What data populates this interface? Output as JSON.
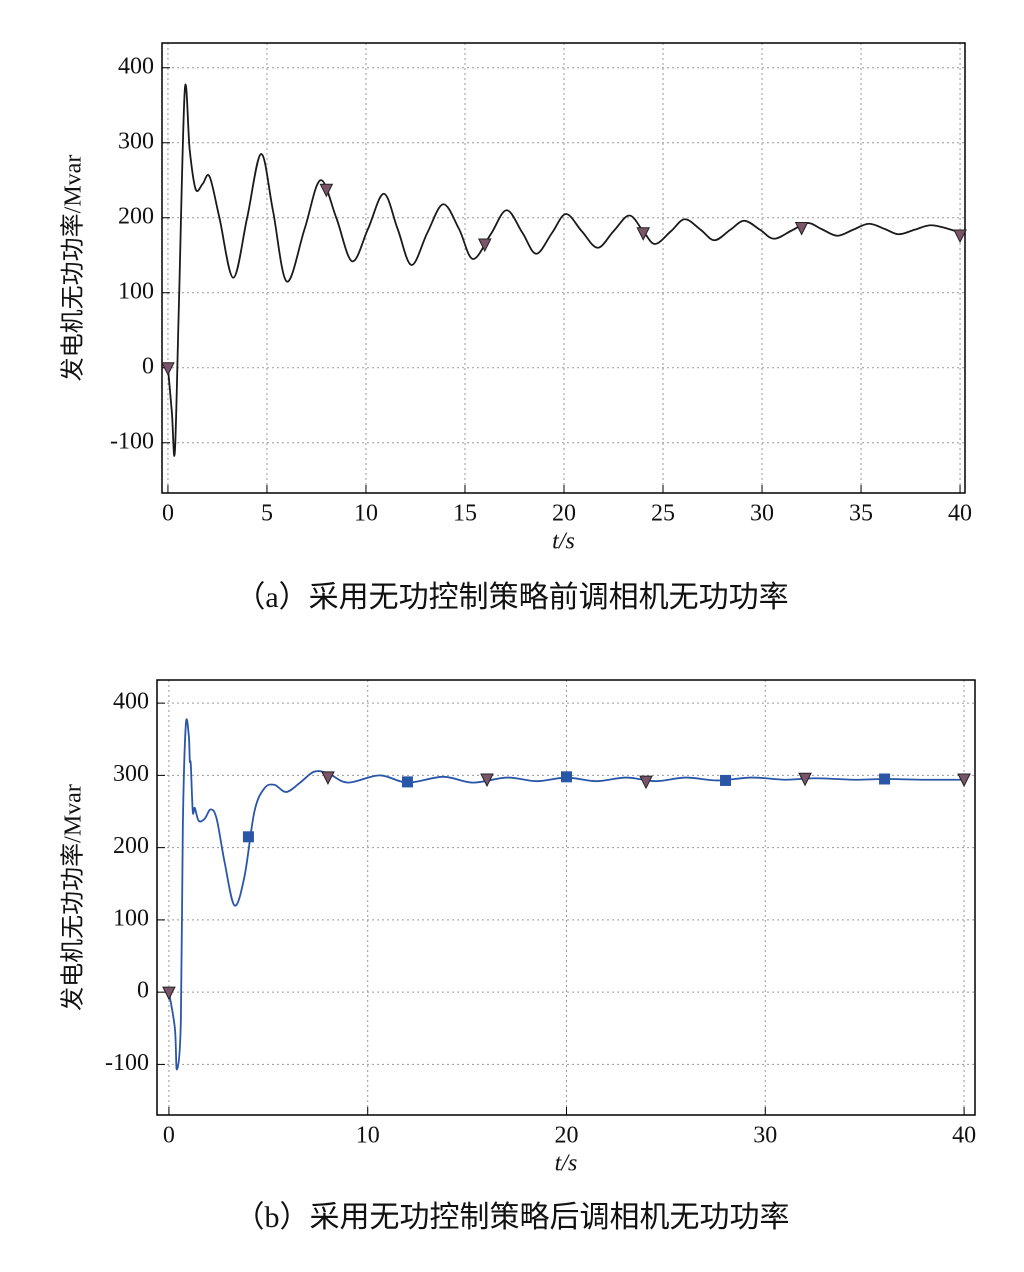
{
  "chart_data": [
    {
      "type": "line",
      "caption": "（a）采用无功控制策略前调相机无功功率",
      "x_label": "t/s",
      "y_label": "发电机无功功率/Mvar",
      "xlim": [
        -0.3,
        40.25
      ],
      "xticks": [
        0,
        5,
        10,
        15,
        20,
        25,
        30,
        35,
        40
      ],
      "ylim": [
        -167,
        433
      ],
      "yticks": [
        -100,
        0,
        100,
        200,
        300,
        400
      ],
      "grid": true,
      "series": [
        {
          "color": "#1a1a1a",
          "x": [
            0,
            0.2,
            0.35,
            0.55,
            0.85,
            1.1,
            1.4,
            1.75,
            2.1,
            2.6,
            3.3,
            4.0,
            4.7,
            5.3,
            6.0,
            6.9,
            7.7,
            8.5,
            9.3,
            10.1,
            10.9,
            11.6,
            12.3,
            13.1,
            13.9,
            14.7,
            15.4,
            16.3,
            17.1,
            17.9,
            18.6,
            19.4,
            20.1,
            20.9,
            21.7,
            22.5,
            23.3,
            24.0,
            24.6,
            25.4,
            26.1,
            26.9,
            27.6,
            28.4,
            29.1,
            29.9,
            30.6,
            31.5,
            32.3,
            33.0,
            33.8,
            34.6,
            35.4,
            36.2,
            36.9,
            37.7,
            38.5,
            39.3,
            40
          ],
          "values": [
            0,
            -60,
            -112,
            80,
            370,
            290,
            238,
            245,
            255,
            200,
            120,
            200,
            285,
            210,
            115,
            185,
            250,
            200,
            142,
            185,
            232,
            185,
            137,
            180,
            218,
            185,
            145,
            178,
            210,
            180,
            152,
            180,
            205,
            182,
            160,
            182,
            203,
            182,
            165,
            182,
            198,
            184,
            170,
            184,
            196,
            184,
            172,
            183,
            193,
            185,
            176,
            184,
            192,
            185,
            178,
            184,
            190,
            186,
            180
          ]
        }
      ],
      "markers": {
        "shape": "triangle",
        "color": "#7a5468",
        "x": [
          0,
          8,
          16,
          24,
          32,
          40
        ],
        "values": [
          0,
          238,
          165,
          180,
          187,
          177
        ]
      }
    },
    {
      "type": "line",
      "caption": "（b）采用无功控制策略后调相机无功功率",
      "x_label": "t/s",
      "y_label": "发电机无功功率/Mvar",
      "xlim": [
        -0.6,
        40.55
      ],
      "xticks": [
        0,
        10,
        20,
        30,
        40
      ],
      "ylim": [
        -170,
        432
      ],
      "yticks": [
        -100,
        0,
        100,
        200,
        300,
        400
      ],
      "grid": true,
      "series": [
        {
          "color": "#2a56a8",
          "x": [
            0,
            0.3,
            0.4,
            0.6,
            0.7,
            0.85,
            1.0,
            1.05,
            1.1,
            1.2,
            1.3,
            1.5,
            1.8,
            2.1,
            2.4,
            2.8,
            3.3,
            3.8,
            4.3,
            4.8,
            5.3,
            5.9,
            6.6,
            7.3,
            8,
            9,
            10.6,
            12,
            13.8,
            15.3,
            17,
            18.5,
            20,
            21.5,
            23,
            24.5,
            26,
            27.6,
            29.3,
            31,
            32.5,
            34.5,
            36,
            38,
            40
          ],
          "values": [
            0,
            -50,
            -107,
            -40,
            230,
            370,
            355,
            320,
            315,
            250,
            255,
            237,
            240,
            253,
            240,
            180,
            120,
            160,
            250,
            282,
            287,
            277,
            290,
            305,
            303,
            290,
            300,
            290,
            298,
            290,
            297,
            292,
            297,
            292,
            297,
            292,
            297,
            293,
            297,
            294,
            296,
            294,
            295,
            294,
            294
          ]
        }
      ],
      "markers": {
        "shape": "triangle",
        "color": "#7a5468",
        "x": [
          0,
          8,
          16,
          24,
          32,
          40
        ],
        "values": [
          0,
          298,
          295,
          292,
          296,
          295
        ]
      },
      "markers2": {
        "shape": "square",
        "color": "#2a56a8",
        "x": [
          4,
          12,
          20,
          28,
          36
        ],
        "values": [
          215,
          291,
          298,
          293,
          295
        ]
      }
    }
  ]
}
